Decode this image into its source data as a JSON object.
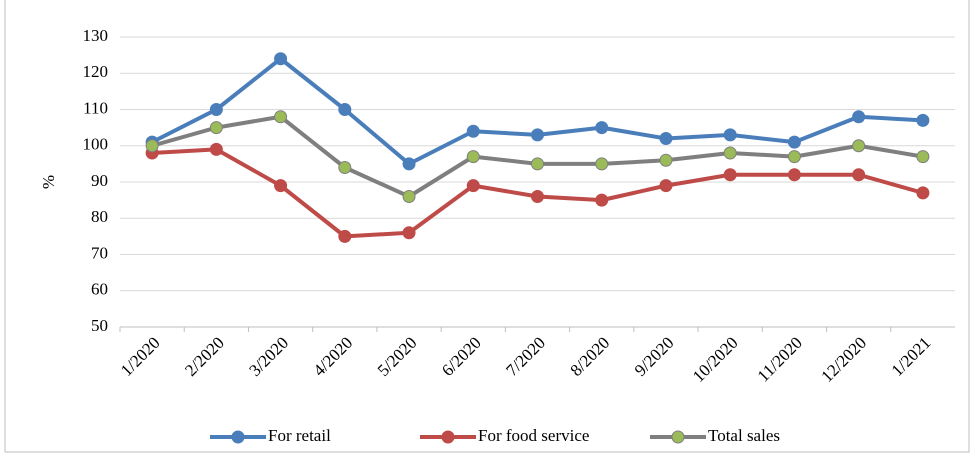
{
  "chart_data": {
    "type": "line",
    "y_label": "%",
    "categories": [
      "1/2020",
      "2/2020",
      "3/2020",
      "4/2020",
      "5/2020",
      "6/2020",
      "7/2020",
      "8/2020",
      "9/2020",
      "10/2020",
      "11/2020",
      "12/2020",
      "1/2021"
    ],
    "series": [
      {
        "name": "For retail",
        "color": "#4a7ebb",
        "marker_color": "#4a7ebb",
        "values": [
          101,
          110,
          124,
          110,
          95,
          104,
          103,
          105,
          102,
          103,
          101,
          108,
          107
        ]
      },
      {
        "name": "For food service",
        "color": "#be4b48",
        "marker_color": "#be4b48",
        "values": [
          98,
          99,
          89,
          75,
          76,
          89,
          86,
          85,
          89,
          92,
          92,
          92,
          87
        ]
      },
      {
        "name": "Total sales",
        "color": "#7f7f7f",
        "marker_color": "#9bbb59",
        "values": [
          100,
          105,
          108,
          94,
          86,
          97,
          95,
          95,
          96,
          98,
          97,
          100,
          97
        ]
      }
    ],
    "ylim": [
      50,
      130
    ],
    "yticks": [
      50,
      60,
      70,
      80,
      90,
      100,
      110,
      120,
      130
    ],
    "grid": true,
    "legend": "bottom"
  }
}
